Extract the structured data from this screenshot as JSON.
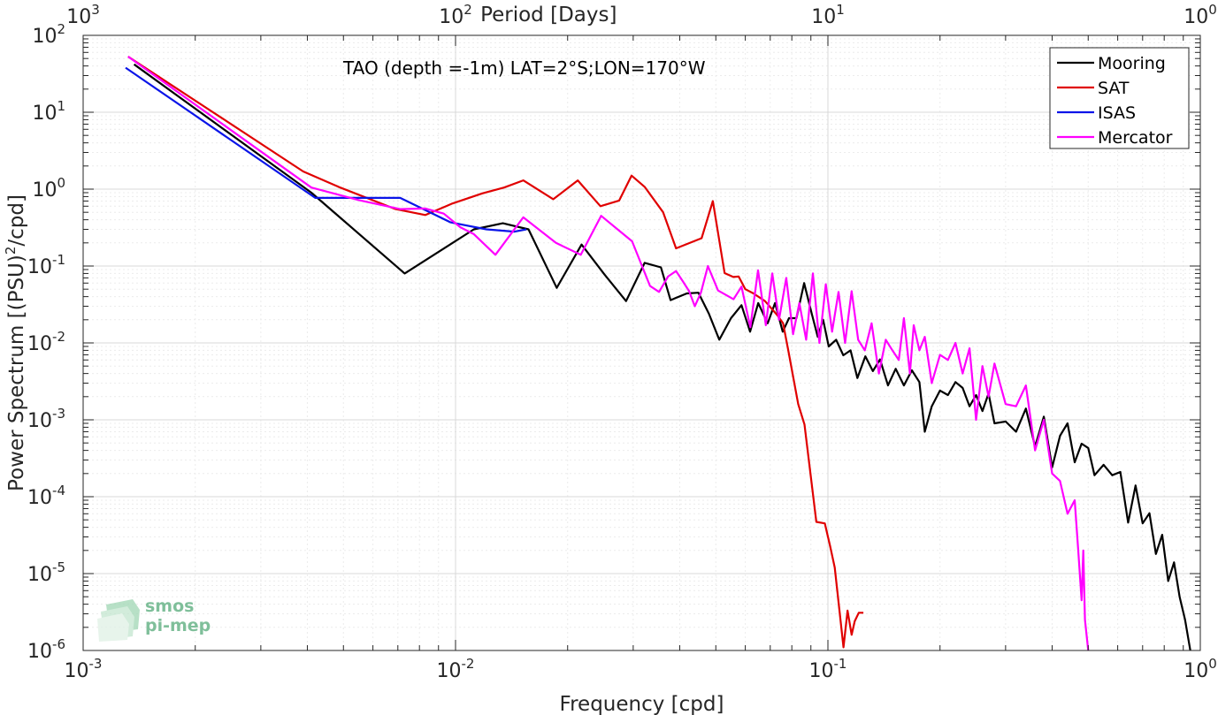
{
  "chart_data": {
    "type": "line",
    "title": "TAO (depth =-1m) LAT=2°S;LON=170°W",
    "xlabel": "Frequency [cpd]",
    "ylabel": "Power Spectrum [(PSU)²/cpd]",
    "top_xlabel": "Period [Days]",
    "xscale": "log",
    "yscale": "log",
    "xlim": [
      0.001,
      1
    ],
    "ylim": [
      1e-06,
      100
    ],
    "grid": true,
    "legend_position": "top-right",
    "x_ticks": [
      {
        "base": "10",
        "exp": "-3"
      },
      {
        "base": "10",
        "exp": "-2"
      },
      {
        "base": "10",
        "exp": "-1"
      },
      {
        "base": "10",
        "exp": "0"
      }
    ],
    "y_ticks": [
      {
        "base": "10",
        "exp": "-6"
      },
      {
        "base": "10",
        "exp": "-5"
      },
      {
        "base": "10",
        "exp": "-4"
      },
      {
        "base": "10",
        "exp": "-3"
      },
      {
        "base": "10",
        "exp": "-2"
      },
      {
        "base": "10",
        "exp": "-1"
      },
      {
        "base": "10",
        "exp": "0"
      },
      {
        "base": "10",
        "exp": "1"
      },
      {
        "base": "10",
        "exp": "2"
      }
    ],
    "top_ticks": [
      {
        "base": "10",
        "exp": "3"
      },
      {
        "base": "10",
        "exp": "2"
      },
      {
        "base": "10",
        "exp": "1"
      },
      {
        "base": "10",
        "exp": "0"
      }
    ],
    "series": [
      {
        "name": "Mooring",
        "color": "#000000",
        "x": [
          0.00137,
          0.0041,
          0.0073,
          0.0112,
          0.0134,
          0.0157,
          0.0187,
          0.0218,
          0.0251,
          0.0287,
          0.0322,
          0.0356,
          0.0378,
          0.0418,
          0.0449,
          0.0479,
          0.0511,
          0.0549,
          0.0586,
          0.0618,
          0.065,
          0.0689,
          0.0721,
          0.0756,
          0.0786,
          0.0823,
          0.0863,
          0.0905,
          0.0939,
          0.0971,
          0.1005,
          0.1052,
          0.11,
          0.115,
          0.12,
          0.126,
          0.132,
          0.138,
          0.145,
          0.152,
          0.16,
          0.168,
          0.176,
          0.182,
          0.19,
          0.2,
          0.21,
          0.22,
          0.23,
          0.24,
          0.25,
          0.26,
          0.27,
          0.28,
          0.3,
          0.32,
          0.34,
          0.36,
          0.38,
          0.4,
          0.42,
          0.44,
          0.46,
          0.48,
          0.5,
          0.52,
          0.55,
          0.58,
          0.61,
          0.64,
          0.67,
          0.7,
          0.73,
          0.76,
          0.79,
          0.82,
          0.85,
          0.88,
          0.91,
          0.94
        ],
        "y": [
          42,
          0.9,
          0.08,
          0.3,
          0.36,
          0.3,
          0.052,
          0.19,
          0.078,
          0.035,
          0.11,
          0.096,
          0.036,
          0.044,
          0.045,
          0.024,
          0.011,
          0.021,
          0.031,
          0.014,
          0.033,
          0.018,
          0.033,
          0.014,
          0.021,
          0.021,
          0.06,
          0.024,
          0.012,
          0.02,
          0.009,
          0.011,
          0.0069,
          0.008,
          0.0035,
          0.0067,
          0.0043,
          0.0061,
          0.0028,
          0.0046,
          0.0028,
          0.0044,
          0.0031,
          0.0007,
          0.0015,
          0.0024,
          0.0021,
          0.0031,
          0.0026,
          0.0015,
          0.0021,
          0.0013,
          0.0022,
          0.0009,
          0.00095,
          0.0007,
          0.0014,
          0.00045,
          0.0011,
          0.00024,
          0.00062,
          0.0009,
          0.00028,
          0.00049,
          0.00043,
          0.00019,
          0.00026,
          0.00019,
          0.00021,
          4.6e-05,
          0.00014,
          4.5e-05,
          6.1e-05,
          1.8e-05,
          3.2e-05,
          8e-06,
          1.4e-05,
          5e-06,
          2.5e-06,
          1e-06
        ]
      },
      {
        "name": "SAT",
        "color": "#e00000",
        "x": [
          0.00132,
          0.0039,
          0.0049,
          0.0069,
          0.0083,
          0.0098,
          0.0118,
          0.0135,
          0.0152,
          0.0183,
          0.0213,
          0.0245,
          0.0275,
          0.0297,
          0.0322,
          0.0361,
          0.0391,
          0.0458,
          0.0491,
          0.0528,
          0.0557,
          0.0576,
          0.06,
          0.0631,
          0.0678,
          0.0731,
          0.0758,
          0.0782,
          0.0832,
          0.0865,
          0.0931,
          0.0981,
          0.1013,
          0.1043,
          0.1101,
          0.1129,
          0.1158,
          0.118,
          0.121,
          0.1245
        ],
        "y": [
          53,
          1.7,
          1.05,
          0.55,
          0.46,
          0.65,
          0.88,
          1.05,
          1.3,
          0.74,
          1.3,
          0.6,
          0.71,
          1.5,
          1.07,
          0.5,
          0.17,
          0.23,
          0.7,
          0.081,
          0.072,
          0.073,
          0.05,
          0.044,
          0.035,
          0.023,
          0.018,
          0.0082,
          0.0016,
          0.00087,
          4.7e-05,
          4.5e-05,
          2.3e-05,
          1.2e-05,
          1.1e-06,
          3.3e-06,
          1.6e-06,
          2.4e-06,
          3.1e-06,
          3.1e-06
        ]
      },
      {
        "name": "ISAS",
        "color": "#0a14e8",
        "x": [
          0.0013,
          0.0042,
          0.0055,
          0.0071,
          0.0097,
          0.0121,
          0.0144,
          0.0155
        ],
        "y": [
          38,
          0.77,
          0.77,
          0.77,
          0.37,
          0.3,
          0.28,
          0.3
        ]
      },
      {
        "name": "Mercator",
        "color": "#ff00ff",
        "x": [
          0.00132,
          0.0041,
          0.0055,
          0.0071,
          0.0083,
          0.0093,
          0.0103,
          0.0112,
          0.0128,
          0.0152,
          0.0186,
          0.0217,
          0.0246,
          0.0298,
          0.0333,
          0.0352,
          0.0372,
          0.0391,
          0.0408,
          0.0424,
          0.0439,
          0.0456,
          0.0476,
          0.0507,
          0.0558,
          0.0586,
          0.0619,
          0.0649,
          0.0681,
          0.0709,
          0.0739,
          0.0773,
          0.0806,
          0.0838,
          0.0874,
          0.0911,
          0.0949,
          0.0987,
          0.1026,
          0.1068,
          0.1112,
          0.1158,
          0.1206,
          0.1256,
          0.131,
          0.137,
          0.143,
          0.149,
          0.155,
          0.16,
          0.166,
          0.17,
          0.176,
          0.182,
          0.19,
          0.2,
          0.21,
          0.22,
          0.23,
          0.24,
          0.25,
          0.26,
          0.27,
          0.28,
          0.3,
          0.32,
          0.34,
          0.36,
          0.38,
          0.4,
          0.42,
          0.44,
          0.46,
          0.47,
          0.48,
          0.485,
          0.49,
          0.5
        ],
        "y": [
          53,
          1.05,
          0.72,
          0.55,
          0.56,
          0.48,
          0.32,
          0.26,
          0.14,
          0.43,
          0.2,
          0.14,
          0.45,
          0.21,
          0.055,
          0.046,
          0.073,
          0.086,
          0.063,
          0.047,
          0.03,
          0.045,
          0.1,
          0.048,
          0.037,
          0.054,
          0.016,
          0.088,
          0.017,
          0.08,
          0.02,
          0.07,
          0.013,
          0.033,
          0.011,
          0.08,
          0.01,
          0.058,
          0.014,
          0.046,
          0.01,
          0.047,
          0.011,
          0.008,
          0.018,
          0.004,
          0.011,
          0.008,
          0.006,
          0.021,
          0.004,
          0.017,
          0.008,
          0.012,
          0.003,
          0.007,
          0.006,
          0.01,
          0.004,
          0.0085,
          0.001,
          0.005,
          0.002,
          0.0054,
          0.0016,
          0.0015,
          0.0028,
          0.0004,
          0.001,
          0.0002,
          0.00016,
          6e-05,
          9e-05,
          2e-05,
          4.5e-06,
          2e-05,
          2.5e-06,
          1e-06
        ]
      }
    ]
  },
  "logo": {
    "line1": "smos",
    "line2": "pi-mep"
  }
}
